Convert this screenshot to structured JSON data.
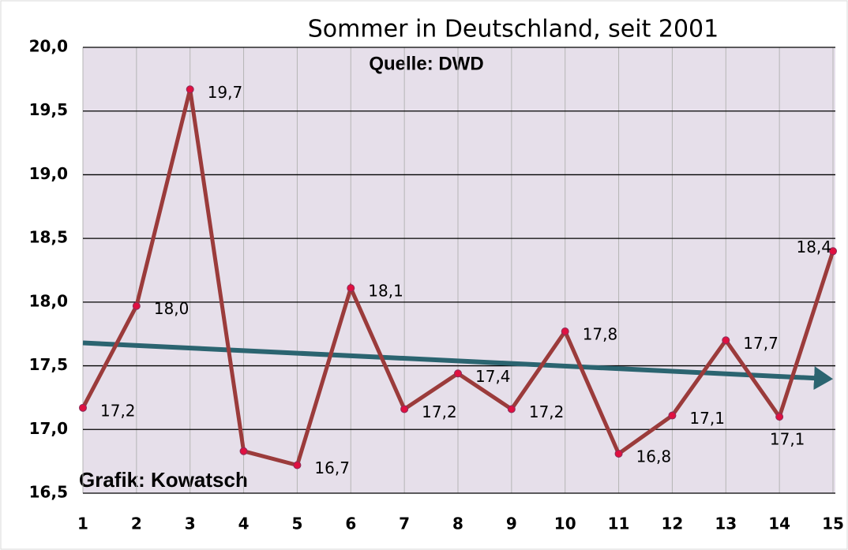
{
  "chart_data": {
    "type": "line",
    "title": "Sommer in Deutschland, seit 2001",
    "annotations": [
      "Quelle: DWD",
      "Grafik: Kowatsch"
    ],
    "x": [
      1,
      2,
      3,
      4,
      5,
      6,
      7,
      8,
      9,
      10,
      11,
      12,
      13,
      14,
      15
    ],
    "xlim": [
      1,
      15
    ],
    "xticks": [
      1,
      2,
      3,
      4,
      5,
      6,
      7,
      8,
      9,
      10,
      11,
      12,
      13,
      14,
      15
    ],
    "series": [
      {
        "color": "#9b3b3b",
        "values": [
          17.17,
          17.97,
          19.67,
          16.83,
          16.72,
          18.11,
          17.16,
          17.44,
          17.16,
          17.77,
          16.81,
          17.11,
          17.7,
          17.1,
          18.4
        ],
        "value_labels": [
          "17,2",
          "18,0",
          "19,7",
          null,
          "16,7",
          "18,1",
          "17,2",
          "17,4",
          "17,2",
          "17,8",
          "16,8",
          "17,1",
          "17,7",
          "17,1",
          "18,4"
        ]
      }
    ],
    "trend": {
      "x": [
        1,
        15
      ],
      "values": [
        17.68,
        17.4
      ],
      "color": "#2b6470"
    },
    "ylim": [
      16.5,
      20
    ],
    "yticks": [
      {
        "value": 16.5,
        "label": "16,5"
      },
      {
        "value": 17,
        "label": "17,0"
      },
      {
        "value": 17.5,
        "label": "17,5"
      },
      {
        "value": 18,
        "label": "18,0"
      },
      {
        "value": 18.5,
        "label": "18,5"
      },
      {
        "value": 19,
        "label": "19,0"
      },
      {
        "value": 19.5,
        "label": "19,5"
      },
      {
        "value": 20,
        "label": "20,0"
      }
    ],
    "grid": true
  }
}
